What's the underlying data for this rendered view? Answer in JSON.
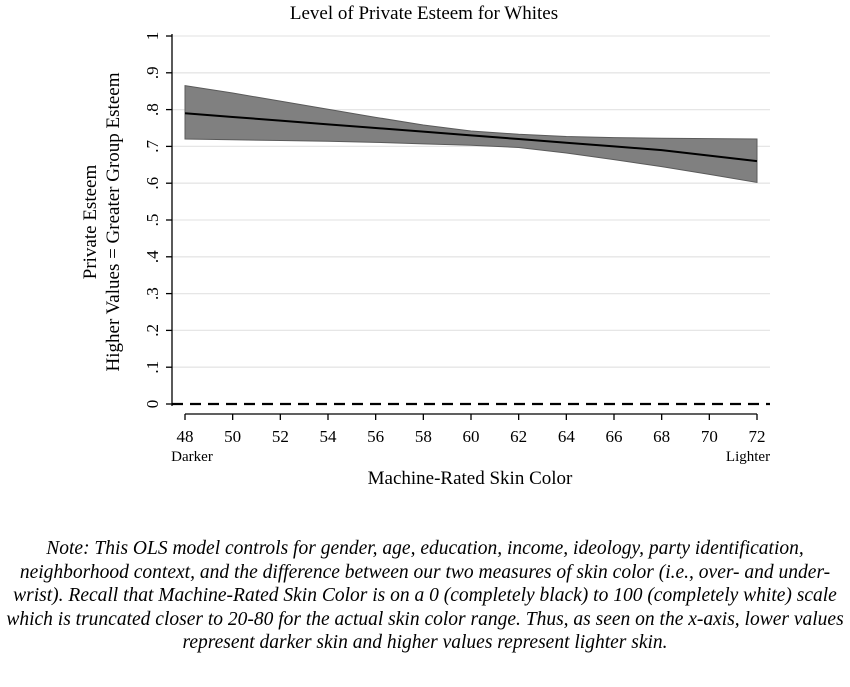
{
  "chart_data": {
    "type": "line",
    "title": "Level of Private Esteem for Whites",
    "xlabel": "Machine-Rated Skin Color",
    "ylabel_lines": [
      "Private Esteem",
      "Higher Values = Greater Group Esteem"
    ],
    "x_end_labels": {
      "left": "Darker",
      "right": "Lighter"
    },
    "xlim": [
      48,
      72
    ],
    "ylim": [
      0,
      1
    ],
    "x_ticks": [
      48,
      50,
      52,
      54,
      56,
      58,
      60,
      62,
      64,
      66,
      68,
      70,
      72
    ],
    "y_ticks": [
      {
        "value": 0,
        "label": "0"
      },
      {
        "value": 0.1,
        "label": ".1"
      },
      {
        "value": 0.2,
        "label": ".2"
      },
      {
        "value": 0.3,
        "label": ".3"
      },
      {
        "value": 0.4,
        "label": ".4"
      },
      {
        "value": 0.5,
        "label": ".5"
      },
      {
        "value": 0.6,
        "label": ".6"
      },
      {
        "value": 0.7,
        "label": ".7"
      },
      {
        "value": 0.8,
        "label": ".8"
      },
      {
        "value": 0.9,
        "label": ".9"
      },
      {
        "value": 1,
        "label": "1"
      }
    ],
    "grid": true,
    "reference_line": {
      "y": 0,
      "style": "dashed"
    },
    "series": [
      {
        "x": [
          48,
          50,
          52,
          54,
          56,
          58,
          60,
          62,
          64,
          66,
          68,
          70,
          72
        ],
        "y": [
          0.79,
          0.78,
          0.77,
          0.76,
          0.75,
          0.74,
          0.73,
          0.72,
          0.71,
          0.7,
          0.69,
          0.675,
          0.66
        ],
        "ci_upper": [
          0.865,
          0.845,
          0.823,
          0.801,
          0.779,
          0.758,
          0.742,
          0.733,
          0.727,
          0.724,
          0.722,
          0.721,
          0.72
        ],
        "ci_lower": [
          0.72,
          0.718,
          0.716,
          0.714,
          0.711,
          0.707,
          0.703,
          0.697,
          0.682,
          0.664,
          0.645,
          0.624,
          0.602
        ]
      }
    ],
    "colors": {
      "band": "#808080",
      "band_edge": "#5a5a5a",
      "line": "#000000",
      "grid": "#e6e6e6"
    }
  },
  "note": "Note: This OLS model controls for gender, age, education, income, ideology, party identification, neighborhood context, and the difference between our two measures of skin color (i.e., over- and under-wrist). Recall that Machine-Rated Skin Color is on a 0 (completely black) to 100 (completely white) scale which is truncated closer to 20-80 for the actual skin color range. Thus, as seen on the x-axis, lower values represent darker skin and higher values represent lighter skin."
}
